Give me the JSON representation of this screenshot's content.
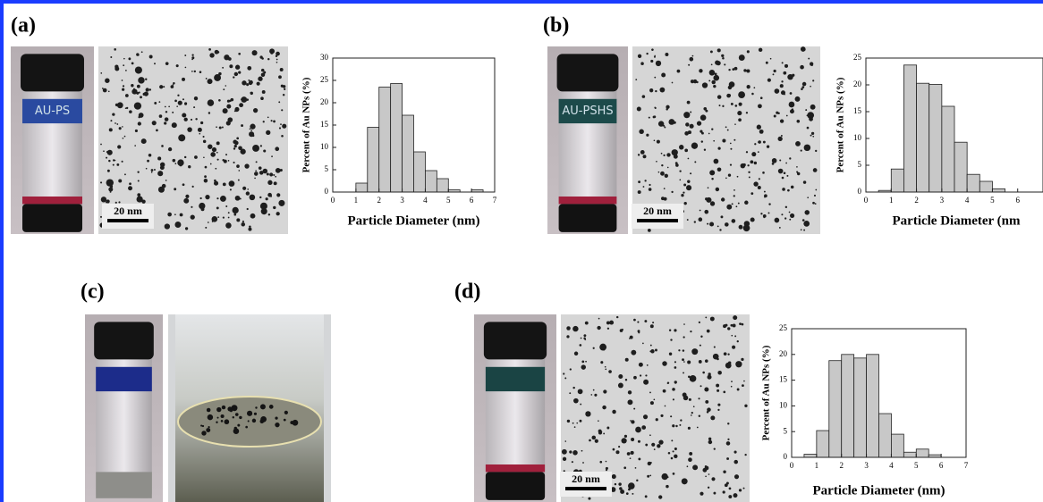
{
  "panel_labels": [
    "(a)",
    "(b)",
    "(c)",
    "(d)"
  ],
  "vial_labels": [
    "AU-PS",
    "AU-PSHS"
  ],
  "scale_bars": [
    "20 nm",
    "20 nm",
    "20 nm"
  ],
  "chart_data": [
    {
      "type": "histogram",
      "ylabel": "Percent of Au NPs (%)",
      "xlabel": "Particle Diameter (nm)",
      "bins": [
        1,
        1.5,
        2,
        2.5,
        3,
        3.5,
        4,
        4.5,
        5,
        5.5,
        6,
        6.5
      ],
      "values": [
        2,
        14.5,
        23.5,
        24.3,
        17.2,
        9,
        4.8,
        3,
        0.5,
        0,
        0.5
      ],
      "color": "#c8c8c8",
      "xlim": [
        0,
        7
      ],
      "ylim": [
        0,
        30
      ],
      "xticks": [
        0,
        1,
        2,
        3,
        4,
        5,
        6,
        7
      ],
      "yticks": [
        0,
        5,
        10,
        15,
        20,
        25,
        30
      ]
    },
    {
      "type": "histogram",
      "ylabel": "Percent of Au NPs (%)",
      "xlabel": "Particle Diameter (nm",
      "bins": [
        0.5,
        1,
        1.5,
        2,
        2.5,
        3,
        3.5,
        4,
        4.5,
        5,
        5.5
      ],
      "values": [
        0.3,
        4.3,
        23.7,
        20.3,
        20.1,
        16,
        9.3,
        3.3,
        2,
        0.6
      ],
      "color": "#c8c8c8",
      "xlim": [
        0,
        7
      ],
      "ylim": [
        0,
        25
      ],
      "xticks": [
        0,
        1,
        2,
        3,
        4,
        5,
        6
      ],
      "yticks": [
        0,
        5,
        10,
        15,
        20,
        25
      ]
    },
    {
      "type": "histogram",
      "ylabel": "Percent of Au NPs (%)",
      "xlabel": "Particle Diameter (nm)",
      "bins": [
        0.5,
        1,
        1.5,
        2,
        2.5,
        3,
        3.5,
        4,
        4.5,
        5,
        5.5,
        6
      ],
      "values": [
        0.6,
        5.2,
        18.8,
        20,
        19.3,
        20,
        8.5,
        4.5,
        1,
        1.6,
        0.5
      ],
      "color": "#c8c8c8",
      "xlim": [
        0,
        7
      ],
      "ylim": [
        0,
        25
      ],
      "xticks": [
        0,
        1,
        2,
        3,
        4,
        5,
        6,
        7
      ],
      "yticks": [
        0,
        5,
        10,
        15,
        20,
        25
      ]
    }
  ]
}
